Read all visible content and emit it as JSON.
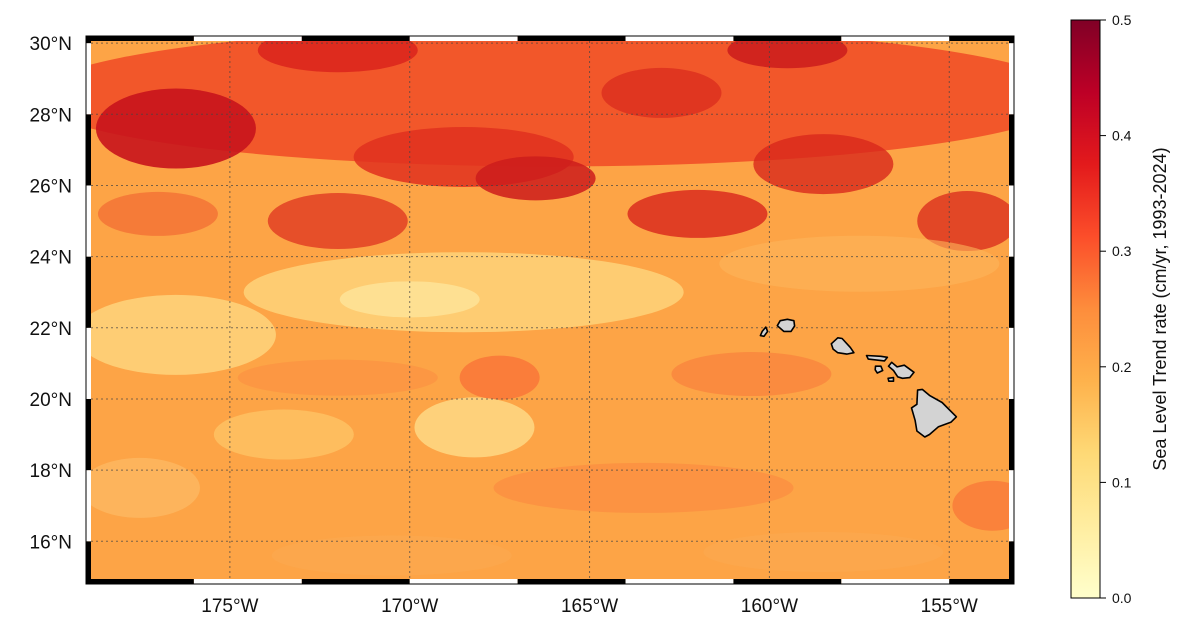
{
  "map": {
    "lon_range": [
      -179,
      -153.2
    ],
    "lat_range": [
      14.8,
      30.2
    ],
    "lon_ticks": [
      {
        "value": -175,
        "label": "175°W"
      },
      {
        "value": -170,
        "label": "170°W"
      },
      {
        "value": -165,
        "label": "165°W"
      },
      {
        "value": -160,
        "label": "160°W"
      },
      {
        "value": -155,
        "label": "155°W"
      }
    ],
    "lat_ticks": [
      {
        "value": 30,
        "label": "30°N"
      },
      {
        "value": 28,
        "label": "28°N"
      },
      {
        "value": 26,
        "label": "26°N"
      },
      {
        "value": 24,
        "label": "24°N"
      },
      {
        "value": 22,
        "label": "22°N"
      },
      {
        "value": 20,
        "label": "20°N"
      },
      {
        "value": 18,
        "label": "18°N"
      },
      {
        "value": 16,
        "label": "16°N"
      }
    ],
    "gridlines": true,
    "land_color": "#d3d3d3",
    "coastline_color": "#000000",
    "islands": [
      {
        "name": "Kauai",
        "outline": [
          [
            -159.78,
            22.06
          ],
          [
            -159.7,
            22.2
          ],
          [
            -159.5,
            22.24
          ],
          [
            -159.32,
            22.2
          ],
          [
            -159.3,
            22.05
          ],
          [
            -159.4,
            21.9
          ],
          [
            -159.6,
            21.9
          ]
        ]
      },
      {
        "name": "Niihau",
        "outline": [
          [
            -160.25,
            21.78
          ],
          [
            -160.2,
            21.9
          ],
          [
            -160.1,
            22.02
          ],
          [
            -160.05,
            21.9
          ],
          [
            -160.15,
            21.76
          ]
        ]
      },
      {
        "name": "Oahu",
        "outline": [
          [
            -158.28,
            21.55
          ],
          [
            -158.1,
            21.72
          ],
          [
            -157.98,
            21.7
          ],
          [
            -157.75,
            21.45
          ],
          [
            -157.65,
            21.3
          ],
          [
            -157.85,
            21.26
          ],
          [
            -158.1,
            21.3
          ],
          [
            -158.23,
            21.4
          ]
        ]
      },
      {
        "name": "Molokai",
        "outline": [
          [
            -157.3,
            21.22
          ],
          [
            -157.25,
            21.12
          ],
          [
            -156.8,
            21.07
          ],
          [
            -156.72,
            21.17
          ],
          [
            -156.9,
            21.2
          ]
        ]
      },
      {
        "name": "Lanai",
        "outline": [
          [
            -157.05,
            20.92
          ],
          [
            -156.9,
            20.92
          ],
          [
            -156.85,
            20.8
          ],
          [
            -157.0,
            20.73
          ],
          [
            -157.06,
            20.82
          ]
        ]
      },
      {
        "name": "Maui",
        "outline": [
          [
            -156.69,
            20.92
          ],
          [
            -156.6,
            21.03
          ],
          [
            -156.45,
            20.9
          ],
          [
            -156.25,
            20.95
          ],
          [
            -155.98,
            20.75
          ],
          [
            -156.1,
            20.6
          ],
          [
            -156.3,
            20.58
          ],
          [
            -156.43,
            20.62
          ],
          [
            -156.55,
            20.8
          ]
        ]
      },
      {
        "name": "Kahoolawe",
        "outline": [
          [
            -156.7,
            20.58
          ],
          [
            -156.55,
            20.6
          ],
          [
            -156.55,
            20.5
          ],
          [
            -156.68,
            20.5
          ]
        ]
      },
      {
        "name": "Hawaii",
        "outline": [
          [
            -155.88,
            20.25
          ],
          [
            -155.75,
            20.27
          ],
          [
            -155.55,
            20.1
          ],
          [
            -155.2,
            19.9
          ],
          [
            -154.8,
            19.5
          ],
          [
            -154.95,
            19.35
          ],
          [
            -155.3,
            19.22
          ],
          [
            -155.55,
            19.0
          ],
          [
            -155.68,
            18.93
          ],
          [
            -155.9,
            19.1
          ],
          [
            -155.95,
            19.4
          ],
          [
            -156.05,
            19.75
          ],
          [
            -155.9,
            19.85
          ]
        ]
      }
    ],
    "field_description": "gridded sea level trend field (cm/yr)"
  },
  "colorbar": {
    "label": "Sea Level Trend rate (cm/yr, 1993-2024)",
    "vmin": 0.0,
    "vmax": 0.5,
    "ticks": [
      {
        "value": 0.0,
        "label": "0.0"
      },
      {
        "value": 0.1,
        "label": "0.1"
      },
      {
        "value": 0.2,
        "label": "0.2"
      },
      {
        "value": 0.3,
        "label": "0.3"
      },
      {
        "value": 0.4,
        "label": "0.4"
      },
      {
        "value": 0.5,
        "label": "0.5"
      }
    ],
    "colormap": "YlOrRd",
    "colors": [
      "#ffffcc",
      "#ffeda0",
      "#fed976",
      "#feb24c",
      "#fd8d3c",
      "#fc4e2a",
      "#e31a1c",
      "#bd0026",
      "#800026"
    ]
  }
}
